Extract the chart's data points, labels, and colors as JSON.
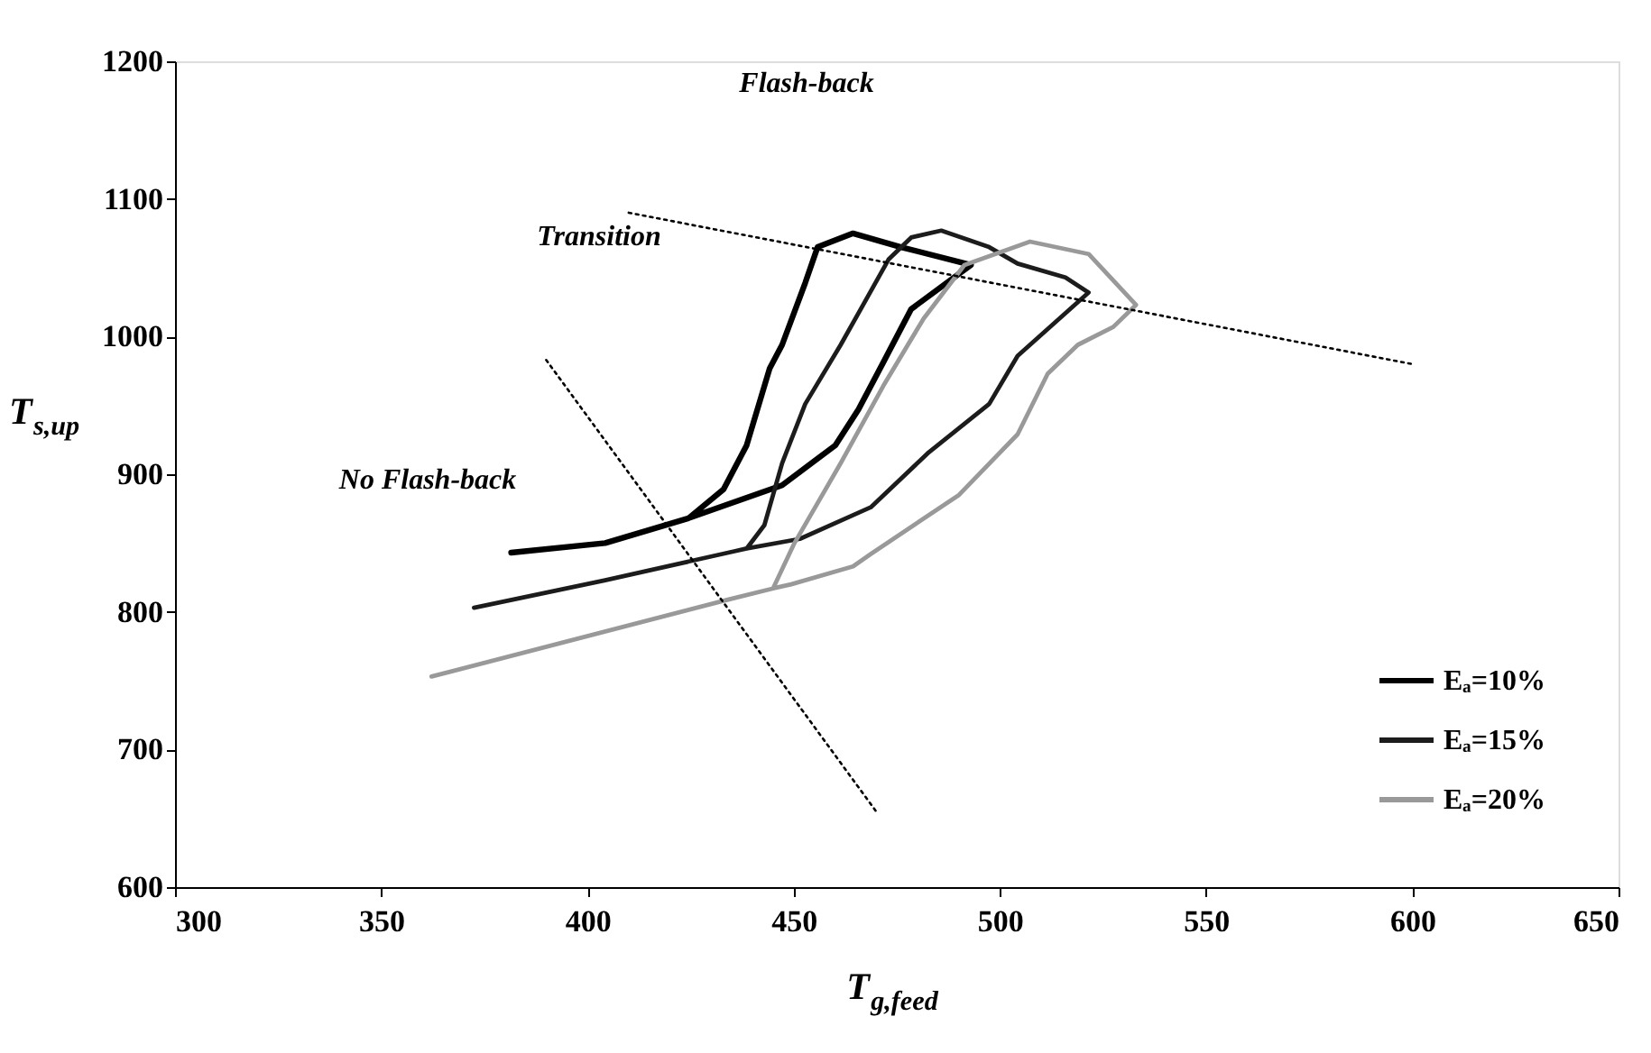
{
  "chart_data": {
    "type": "line",
    "xlabel": "T$_{g,feed}$",
    "ylabel": "T$_{s,up}$",
    "xlim": [
      300,
      650
    ],
    "ylim": [
      600,
      1200
    ],
    "xticks": [
      300,
      350,
      400,
      450,
      500,
      550,
      600,
      650
    ],
    "yticks": [
      600,
      700,
      800,
      900,
      1000,
      1100,
      1200
    ],
    "legend": "bottom right",
    "marker": "none",
    "line_style": "solid",
    "series": [
      {
        "name": "Eₐ=10%",
        "color": "#000000",
        "x": [
          381.5,
          404.3,
          424.5,
          433,
          438.6,
          444.2,
          447.2,
          452.8,
          455.8,
          464.4,
          476,
          493,
          478.5,
          471.7,
          465.7,
          460.1,
          447.2,
          424.5
        ],
        "values": [
          843,
          850,
          868,
          889,
          921,
          977,
          994,
          1039,
          1065,
          1075,
          1065,
          1052,
          1020,
          981,
          947,
          921,
          892,
          868
        ]
      },
      {
        "name": "Eₐ=15%",
        "color": "#1c1c1c",
        "x": [
          372.5,
          404.3,
          435.6,
          438.6,
          442.9,
          447.2,
          452.8,
          461.4,
          467.4,
          473,
          478.5,
          485.8,
          497.4,
          504.3,
          515.9,
          521.5,
          504.3,
          497.4,
          482.8,
          468.7,
          451.5,
          438.6
        ],
        "values": [
          803,
          823,
          844,
          846,
          863,
          908,
          951,
          994,
          1026,
          1056,
          1072,
          1077,
          1065,
          1053,
          1043,
          1032,
          986,
          951,
          916,
          876,
          853,
          846
        ]
      },
      {
        "name": "Eₐ=20%",
        "color": "#999999",
        "x": [
          362.2,
          434.3,
          445,
          450.2,
          461.4,
          471.7,
          481.5,
          491.4,
          507.3,
          521.5,
          533,
          527.5,
          518.9,
          511.6,
          504.3,
          490.1,
          468.7,
          464.4,
          449.4,
          445
        ],
        "values": [
          753,
          809,
          817,
          850,
          908,
          964,
          1013,
          1052,
          1069,
          1060,
          1023,
          1007,
          994,
          973,
          929,
          885,
          842,
          833,
          820,
          817
        ]
      },
      {
        "color": "#000000",
        "line_style": "dotted",
        "x": [
          410,
          600
        ],
        "values": [
          1090,
          980
        ]
      },
      {
        "color": "#000000",
        "line_style": "dotted",
        "x": [
          390,
          470
        ],
        "values": [
          983,
          655
        ]
      }
    ],
    "annotations": [
      "Flash-back",
      "Transition",
      "No Flash-back"
    ]
  }
}
